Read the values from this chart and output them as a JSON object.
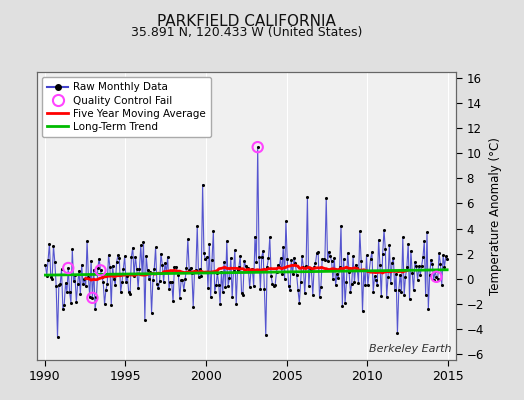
{
  "title": "PARKFIELD CALIFORNIA",
  "subtitle": "35.891 N, 120.433 W (United States)",
  "ylabel_right": "Temperature Anomaly (°C)",
  "watermark": "Berkeley Earth",
  "ylim": [
    -6.5,
    16.5
  ],
  "xlim": [
    1989.5,
    2015.5
  ],
  "yticks": [
    -6,
    -4,
    -2,
    0,
    2,
    4,
    6,
    8,
    10,
    12,
    14,
    16
  ],
  "xticks": [
    1990,
    1995,
    2000,
    2005,
    2010,
    2015
  ],
  "bg_color": "#e0e0e0",
  "plot_bg_color": "#f0f0f0",
  "raw_line_color": "#4444cc",
  "raw_dot_color": "#000000",
  "qc_marker_color": "#ff44ff",
  "moving_avg_color": "#ff0000",
  "trend_color": "#00bb00",
  "grid_color": "#ffffff",
  "title_fontsize": 11,
  "subtitle_fontsize": 9,
  "seed": 42
}
